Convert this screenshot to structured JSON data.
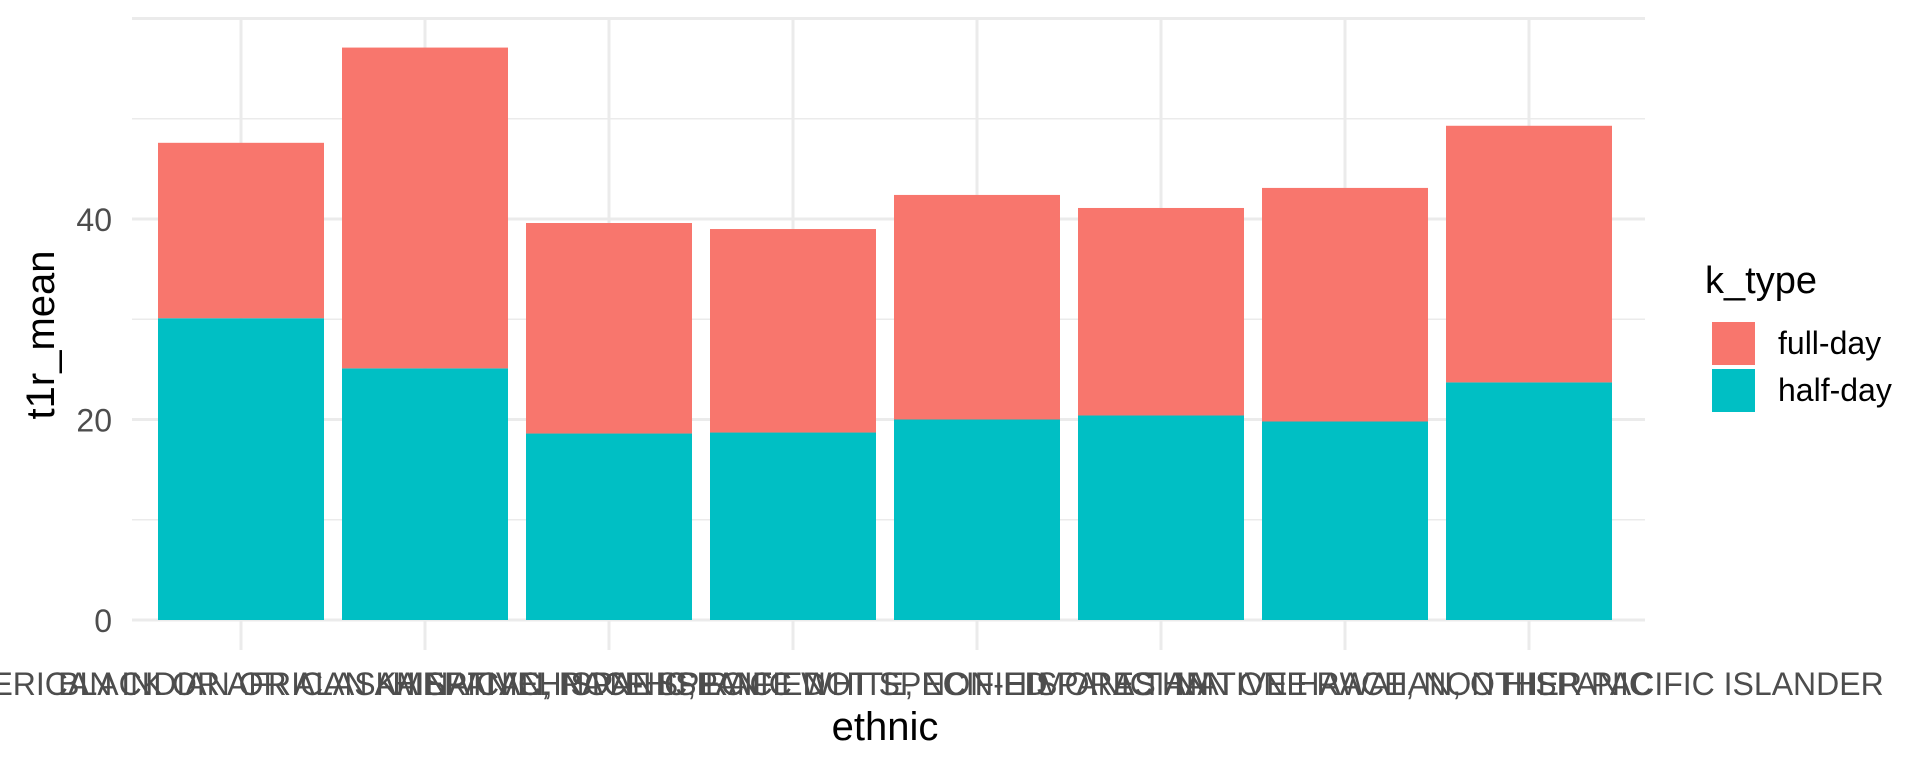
{
  "chart_data": {
    "type": "bar",
    "stacked": true,
    "xlabel": "ethnic",
    "ylabel": "t1r_mean",
    "ylim": [
      0,
      60
    ],
    "y_ticks": [
      0,
      20,
      40
    ],
    "grid": true,
    "legend_position": "right",
    "legend_title": "k_type",
    "categories": [
      "AMERICAN INDIAN OR ALASKA NATIVE",
      "BLACK OR AFRICAN AMERICAN, NON-HISPANIC",
      "HISPANIC, RACE SPECIFIED",
      "HISPANIC, RACE NOT SPECIFIED",
      "WHITE, NON-HISPANIC",
      "ASIAN",
      "MORE THAN ONE RACE, NON HISPANIC",
      "NATIVE HAWAIIAN, OTHER PACIFIC ISLANDER"
    ],
    "series": [
      {
        "name": "half-day",
        "color": "#00BFC4",
        "values": [
          30.1,
          25.1,
          18.6,
          18.7,
          20.0,
          20.4,
          19.8,
          23.7
        ]
      },
      {
        "name": "full-day",
        "color": "#F8766D",
        "values": [
          17.5,
          32.0,
          21.0,
          20.3,
          22.4,
          20.7,
          23.3,
          25.6
        ]
      }
    ]
  }
}
